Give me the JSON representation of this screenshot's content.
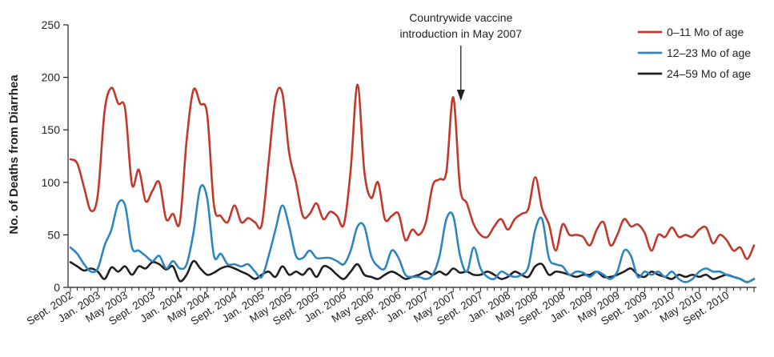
{
  "chart_data": {
    "type": "line",
    "title": "",
    "xlabel": "",
    "ylabel": "No. of Deaths from Diarrhea",
    "ylim": [
      0,
      250
    ],
    "yticks": [
      0,
      50,
      100,
      150,
      200,
      250
    ],
    "grid": false,
    "legend_position": "top-right",
    "x_start": "2002-09",
    "x_end": "2010-12",
    "x_tick_labels": [
      "Sept. 2002",
      "Jan. 2003",
      "May 2003",
      "Sept. 2003",
      "Jan. 2004",
      "May 2004",
      "Sept. 2004",
      "Jan. 2005",
      "May 2005",
      "Sept. 2005",
      "Jan. 2006",
      "May 2006",
      "Sept. 2006",
      "Jan. 2007",
      "May 2007",
      "Sept. 2007",
      "Jan. 2008",
      "May 2008",
      "Sept. 2008",
      "Jan. 2009",
      "May 2009",
      "Sept. 2009",
      "Jan. 2010",
      "May 2010",
      "Sept. 2010"
    ],
    "annotation": {
      "lines": [
        "Countrywide vaccine",
        "introduction in May 2007"
      ],
      "month_index": 57
    },
    "series": [
      {
        "name": "0–11 Mo of age",
        "color": "#c0392b",
        "values": [
          122,
          118,
          95,
          73,
          88,
          168,
          190,
          175,
          170,
          98,
          112,
          82,
          92,
          100,
          65,
          70,
          62,
          140,
          188,
          175,
          165,
          78,
          68,
          62,
          78,
          62,
          66,
          62,
          60,
          120,
          180,
          185,
          128,
          100,
          68,
          70,
          80,
          65,
          72,
          68,
          60,
          112,
          193,
          110,
          85,
          100,
          65,
          68,
          70,
          45,
          55,
          50,
          62,
          97,
          103,
          110,
          181,
          95,
          80,
          60,
          50,
          48,
          58,
          65,
          55,
          65,
          70,
          75,
          105,
          75,
          60,
          35,
          60,
          50,
          50,
          48,
          40,
          55,
          62,
          40,
          50,
          65,
          58,
          60,
          52,
          35,
          50,
          48,
          57,
          48,
          50,
          48,
          55,
          57,
          42,
          50,
          45,
          35,
          38,
          27,
          40
        ]
      },
      {
        "name": "12–23 Mo of age",
        "color": "#2e86c1",
        "values": [
          38,
          32,
          22,
          15,
          18,
          40,
          55,
          80,
          78,
          38,
          35,
          30,
          25,
          30,
          18,
          25,
          18,
          22,
          52,
          95,
          85,
          30,
          32,
          22,
          22,
          20,
          22,
          15,
          10,
          30,
          55,
          78,
          58,
          30,
          28,
          35,
          28,
          28,
          28,
          25,
          22,
          35,
          58,
          58,
          30,
          20,
          18,
          35,
          28,
          12,
          10,
          10,
          8,
          12,
          30,
          65,
          68,
          30,
          15,
          38,
          18,
          10,
          8,
          15,
          12,
          10,
          12,
          20,
          55,
          65,
          28,
          22,
          20,
          12,
          15,
          14,
          10,
          15,
          12,
          8,
          15,
          35,
          30,
          10,
          15,
          12,
          15,
          10,
          15,
          8,
          5,
          8,
          15,
          18,
          15,
          15,
          12,
          10,
          8,
          5,
          8
        ]
      },
      {
        "name": "24–59 Mo of age",
        "color": "#231f20",
        "values": [
          24,
          20,
          16,
          18,
          15,
          8,
          19,
          15,
          20,
          12,
          20,
          18,
          24,
          22,
          17,
          20,
          6,
          12,
          25,
          18,
          12,
          14,
          18,
          20,
          18,
          15,
          12,
          8,
          12,
          15,
          10,
          20,
          12,
          15,
          12,
          18,
          10,
          20,
          18,
          12,
          8,
          15,
          22,
          12,
          10,
          8,
          12,
          15,
          12,
          8,
          10,
          12,
          15,
          12,
          15,
          12,
          18,
          14,
          15,
          12,
          12,
          15,
          12,
          8,
          10,
          15,
          12,
          10,
          20,
          22,
          12,
          15,
          14,
          12,
          10,
          12,
          12,
          15,
          10,
          10,
          12,
          15,
          18,
          12,
          10,
          15,
          12,
          10,
          8,
          12,
          10,
          12,
          10,
          12,
          8,
          10,
          12,
          10,
          8,
          5,
          8
        ]
      }
    ]
  }
}
